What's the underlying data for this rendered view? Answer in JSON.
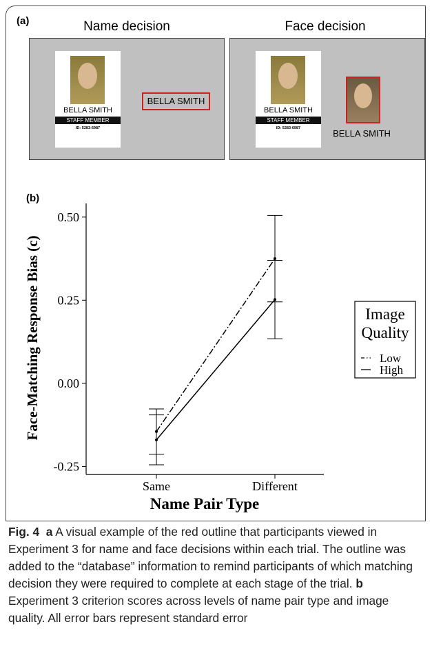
{
  "panel_a": {
    "label": "(a)",
    "left_panel": {
      "title": "Name decision",
      "card": {
        "name": "BELLA SMITH",
        "role": "STAFF MEMBER",
        "id": "ID: 5283-6987"
      },
      "highlight_name": "BELLA SMITH"
    },
    "right_panel": {
      "title": "Face decision",
      "card": {
        "name": "BELLA SMITH",
        "role": "STAFF MEMBER",
        "id": "ID: 5283-6987"
      },
      "photo_name": "BELLA SMITH"
    }
  },
  "chart_data": {
    "type": "line",
    "panel_label": "(b)",
    "x_label": "Name Pair Type",
    "y_label": "Face-Matching Response Bias (c)",
    "categories": [
      "Same",
      "Different"
    ],
    "series": [
      {
        "name": "Low",
        "color": "#000000",
        "dash": "9,3,2,3",
        "values": [
          -0.145,
          0.375
        ],
        "errors": [
          0.068,
          0.13
        ]
      },
      {
        "name": "High",
        "color": "#000000",
        "dash": "none",
        "values": [
          -0.17,
          0.252
        ],
        "errors": [
          0.075,
          0.118
        ]
      }
    ],
    "ylim": [
      -0.274,
      0.541
    ],
    "yticks": [
      {
        "value": -0.25,
        "label": "-0.25"
      },
      {
        "value": 0,
        "label": "0.00"
      },
      0.25,
      {
        "value": 0.5,
        "label": "0.50"
      }
    ],
    "legend": {
      "title": "Image Quality",
      "position": "right"
    }
  },
  "caption": {
    "label": "Fig. 4",
    "part_a_label": "a",
    "part_a_text": "A visual example of the red outline that participants viewed in Experiment 3 for name and face decisions within each trial. The outline was added to the “database” information to remind participants of which matching decision they were required to complete at each stage of the trial.",
    "part_b_label": "b",
    "part_b_text": "Experiment 3 criterion scores across levels of name pair type and image quality. All error bars represent standard error"
  }
}
